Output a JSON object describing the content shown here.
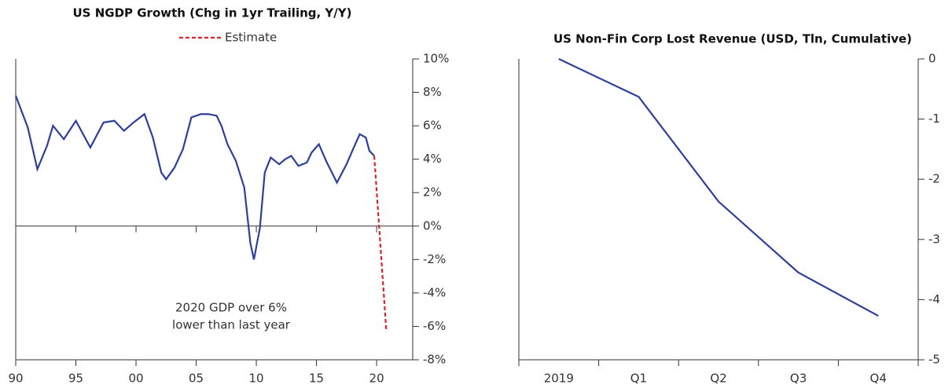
{
  "chart_data": [
    {
      "type": "line",
      "title": "US NGDP Growth (Chg in 1yr Trailing, Y/Y)",
      "xlim": [
        1990,
        2023
      ],
      "xticks": [
        {
          "value": 1990,
          "label": "90"
        },
        {
          "value": 1995,
          "label": "95"
        },
        {
          "value": 2000,
          "label": "00"
        },
        {
          "value": 2005,
          "label": "05"
        },
        {
          "value": 2010,
          "label": "10"
        },
        {
          "value": 2015,
          "label": "15"
        },
        {
          "value": 2020,
          "label": "20"
        }
      ],
      "ylim": [
        -8,
        10
      ],
      "yticks": [
        {
          "value": 10,
          "label": "10%"
        },
        {
          "value": 8,
          "label": "8%"
        },
        {
          "value": 6,
          "label": "6%"
        },
        {
          "value": 4,
          "label": "4%"
        },
        {
          "value": 2,
          "label": "2%"
        },
        {
          "value": 0,
          "label": "0%"
        },
        {
          "value": -2,
          "label": "-2%"
        },
        {
          "value": -4,
          "label": "-4%"
        },
        {
          "value": -6,
          "label": "-6%"
        },
        {
          "value": -8,
          "label": "-8%"
        }
      ],
      "series": [
        {
          "color": "#2e3f9a",
          "dash": false,
          "x": [
            1990,
            1991,
            1991.8,
            1992.6,
            1993.1,
            1994,
            1995,
            1996.2,
            1997.3,
            1998.2,
            1999,
            1999.8,
            2000.7,
            2001.4,
            2002.1,
            2002.5,
            2003.2,
            2003.9,
            2004.6,
            2005.4,
            2006,
            2006.7,
            2007.1,
            2007.6,
            2008.3,
            2009,
            2009.5,
            2009.8,
            2010.3,
            2010.7,
            2011.2,
            2011.9,
            2012.4,
            2012.9,
            2013.5,
            2014.2,
            2014.6,
            2015.2,
            2015.8,
            2016.7,
            2017.5,
            2018.1,
            2018.6,
            2019.1,
            2019.4,
            2019.8
          ],
          "values": [
            7.8,
            5.9,
            3.4,
            4.8,
            6.0,
            5.2,
            6.3,
            4.7,
            6.2,
            6.3,
            5.7,
            6.2,
            6.7,
            5.3,
            3.2,
            2.8,
            3.5,
            4.6,
            6.5,
            6.7,
            6.7,
            6.6,
            6.0,
            4.9,
            3.9,
            2.3,
            -1.0,
            -2.0,
            -0.1,
            3.2,
            4.1,
            3.7,
            4.0,
            4.2,
            3.6,
            3.8,
            4.4,
            4.9,
            3.9,
            2.6,
            3.7,
            4.7,
            5.5,
            5.3,
            4.5,
            4.2
          ]
        },
        {
          "name": "Estimate",
          "color": "#d7262e",
          "dash": true,
          "x": [
            2019.8,
            2020.8
          ],
          "values": [
            4.2,
            -6.2
          ]
        }
      ],
      "annotation": [
        "2020 GDP over 6%",
        "lower than last year"
      ]
    },
    {
      "type": "line",
      "title": "US Non-Fin Corp Lost Revenue (USD, Tln, Cumulative)",
      "categories": [
        "2019",
        "Q1",
        "Q2",
        "Q3",
        "Q4"
      ],
      "ylim": [
        -5,
        0
      ],
      "yticks": [
        0,
        -1,
        -2,
        -3,
        -4,
        -5
      ],
      "series": [
        {
          "color": "#2e3f9a",
          "dash": false,
          "values": [
            0,
            -0.63,
            -2.37,
            -3.55,
            -4.27
          ]
        }
      ]
    }
  ]
}
